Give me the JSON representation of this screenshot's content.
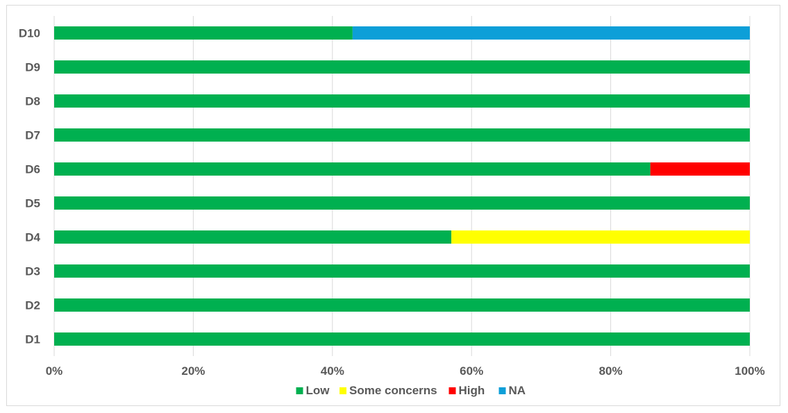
{
  "chart_data": {
    "type": "bar",
    "orientation": "horizontal",
    "stacked": "percent",
    "categories": [
      "D1",
      "D2",
      "D3",
      "D4",
      "D5",
      "D6",
      "D7",
      "D8",
      "D9",
      "D10"
    ],
    "series": [
      {
        "name": "Low",
        "color": "#00b050",
        "values": [
          100,
          100,
          100,
          57.1,
          100,
          85.7,
          100,
          100,
          100,
          42.9
        ]
      },
      {
        "name": "Some concerns",
        "color": "#ffff00",
        "values": [
          0,
          0,
          0,
          42.9,
          0,
          0,
          0,
          0,
          0,
          0
        ]
      },
      {
        "name": "High",
        "color": "#ff0000",
        "values": [
          0,
          0,
          0,
          0,
          0,
          14.3,
          0,
          0,
          0,
          0
        ]
      },
      {
        "name": "NA",
        "color": "#0d9fd8",
        "values": [
          0,
          0,
          0,
          0,
          0,
          0,
          0,
          0,
          0,
          57.1
        ]
      }
    ],
    "xlim": [
      0,
      100
    ],
    "x_ticks": [
      "0%",
      "20%",
      "40%",
      "60%",
      "80%",
      "100%"
    ],
    "grid": "vertical",
    "legend": "bottom"
  }
}
